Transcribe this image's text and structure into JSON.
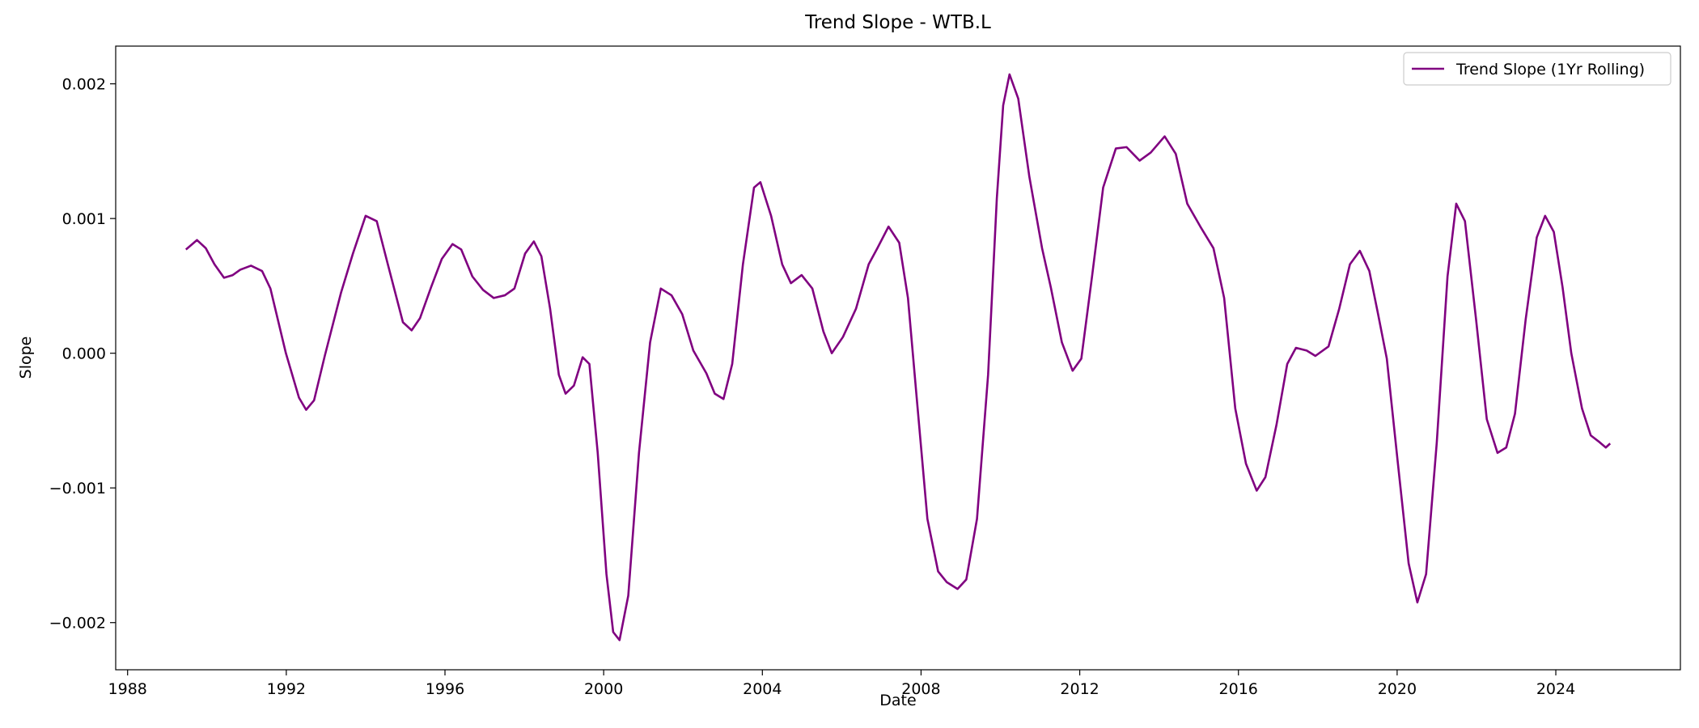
{
  "chart_data": {
    "type": "line",
    "title": "Trend Slope - WTB.L",
    "xlabel": "Date",
    "ylabel": "Slope",
    "legend": "upper right",
    "grid": false,
    "xlim": [
      1987.7,
      2027.14
    ],
    "xticks": [
      1988,
      1992,
      1996,
      2000,
      2004,
      2008,
      2012,
      2016,
      2020,
      2024
    ],
    "ylim": [
      -0.00235,
      0.00228
    ],
    "yticks": [
      {
        "value": -0.002,
        "label": "−0.002"
      },
      {
        "value": -0.001,
        "label": "−0.001"
      },
      {
        "value": 0,
        "label": "0.000"
      },
      0.001,
      0.002
    ],
    "x": [
      1989.47,
      1989.75,
      1989.97,
      1990.19,
      1990.43,
      1990.65,
      1990.84,
      1991.11,
      1991.39,
      1991.6,
      1991.99,
      1992.32,
      1992.5,
      1992.7,
      1992.97,
      1993.38,
      1993.68,
      1994.0,
      1994.28,
      1994.56,
      1994.94,
      1995.16,
      1995.37,
      1995.65,
      1995.92,
      1996.19,
      1996.41,
      1996.69,
      1996.96,
      1997.23,
      1997.51,
      1997.75,
      1998.02,
      1998.24,
      1998.43,
      1998.65,
      1998.87,
      1999.04,
      1999.25,
      1999.47,
      1999.64,
      1999.85,
      2000.07,
      2000.24,
      2000.4,
      2000.62,
      2000.89,
      2001.17,
      2001.44,
      2001.71,
      2001.98,
      2002.26,
      2002.59,
      2002.8,
      2003.02,
      2003.24,
      2003.51,
      2003.79,
      2003.95,
      2004.22,
      2004.5,
      2004.72,
      2004.99,
      2005.26,
      2005.54,
      2005.75,
      2006.03,
      2006.36,
      2006.68,
      2006.9,
      2007.18,
      2007.45,
      2007.67,
      2007.89,
      2008.16,
      2008.43,
      2008.65,
      2008.92,
      2009.14,
      2009.41,
      2009.69,
      2009.91,
      2010.07,
      2010.23,
      2010.45,
      2010.73,
      2011.05,
      2011.27,
      2011.55,
      2011.82,
      2012.04,
      2012.31,
      2012.59,
      2012.91,
      2013.18,
      2013.51,
      2013.79,
      2014.14,
      2014.42,
      2014.71,
      2015.04,
      2015.37,
      2015.64,
      2015.92,
      2016.19,
      2016.46,
      2016.68,
      2016.96,
      2017.23,
      2017.45,
      2017.72,
      2017.94,
      2018.27,
      2018.54,
      2018.81,
      2019.06,
      2019.3,
      2019.52,
      2019.74,
      2020.02,
      2020.29,
      2020.51,
      2020.73,
      2021.0,
      2021.27,
      2021.49,
      2021.71,
      2021.99,
      2022.26,
      2022.53,
      2022.75,
      2022.97,
      2023.24,
      2023.52,
      2023.73,
      2023.95,
      2024.17,
      2024.39,
      2024.66,
      2024.88,
      2025.1,
      2025.26,
      2025.37
    ],
    "series": [
      {
        "name": "Trend Slope (1Yr Rolling)",
        "color": "#800080",
        "values": [
          0.00077,
          0.00084,
          0.00078,
          0.00066,
          0.00056,
          0.00058,
          0.00062,
          0.00065,
          0.00061,
          0.00048,
          0.0,
          -0.00033,
          -0.00042,
          -0.00035,
          -2e-05,
          0.00045,
          0.00074,
          0.00102,
          0.00098,
          0.00066,
          0.00023,
          0.00017,
          0.00026,
          0.00049,
          0.0007,
          0.00081,
          0.00077,
          0.00057,
          0.00047,
          0.00041,
          0.00043,
          0.00048,
          0.00074,
          0.00083,
          0.00072,
          0.00033,
          -0.00016,
          -0.0003,
          -0.00024,
          -3e-05,
          -8e-05,
          -0.00074,
          -0.00164,
          -0.00207,
          -0.00213,
          -0.0018,
          -0.00074,
          8e-05,
          0.00048,
          0.00043,
          0.00029,
          2e-05,
          -0.00015,
          -0.0003,
          -0.00034,
          -8e-05,
          0.00066,
          0.00123,
          0.00127,
          0.00102,
          0.00066,
          0.00052,
          0.00058,
          0.00048,
          0.00016,
          0.0,
          0.00012,
          0.00033,
          0.00066,
          0.00078,
          0.00094,
          0.00082,
          0.00041,
          -0.00033,
          -0.00123,
          -0.00162,
          -0.0017,
          -0.00175,
          -0.00168,
          -0.00123,
          -0.00016,
          0.00115,
          0.00184,
          0.00207,
          0.00189,
          0.00131,
          0.00078,
          0.00049,
          8e-05,
          -0.00013,
          -4e-05,
          0.00057,
          0.00123,
          0.00152,
          0.00153,
          0.00143,
          0.00149,
          0.00161,
          0.00148,
          0.00111,
          0.00094,
          0.00078,
          0.00041,
          -0.00041,
          -0.00082,
          -0.00102,
          -0.00092,
          -0.00053,
          -8e-05,
          4e-05,
          2e-05,
          -2e-05,
          5e-05,
          0.00033,
          0.00066,
          0.00076,
          0.00061,
          0.00029,
          -4e-05,
          -0.00082,
          -0.00156,
          -0.00185,
          -0.00164,
          -0.00066,
          0.00057,
          0.00111,
          0.00098,
          0.00025,
          -0.00049,
          -0.00074,
          -0.0007,
          -0.00045,
          0.00025,
          0.00086,
          0.00102,
          0.0009,
          0.00049,
          0.0,
          -0.00041,
          -0.00061,
          -0.00066,
          -0.0007,
          -0.00067
        ]
      }
    ]
  }
}
